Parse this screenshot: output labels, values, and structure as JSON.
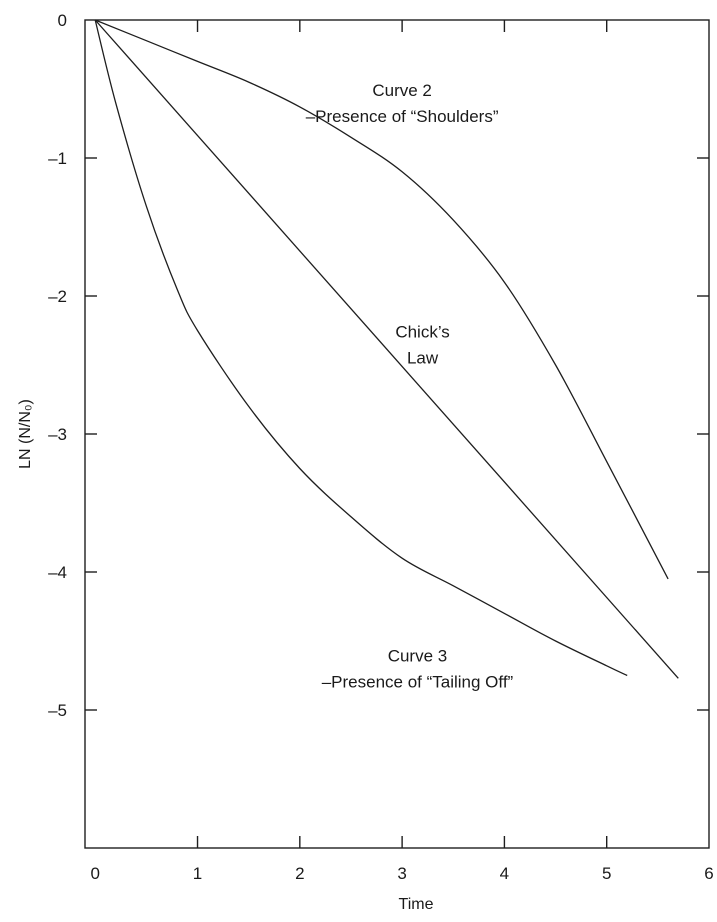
{
  "chart_data": {
    "type": "line",
    "title": "",
    "xlabel": "Time",
    "ylabel": "LN (N/N₀)",
    "xlim": [
      -0.1,
      6.0
    ],
    "ylim": [
      -6.0,
      0.0
    ],
    "grid": false,
    "x_ticks": [
      "0",
      "1",
      "2",
      "3",
      "4",
      "5",
      "6"
    ],
    "y_ticks": [
      "0",
      "-1",
      "-2",
      "-3",
      "-4",
      "-5"
    ],
    "series": [
      {
        "name": "",
        "points": [
          [
            0,
            0
          ],
          [
            5.7,
            -4.77
          ]
        ]
      },
      {
        "name": "",
        "points": [
          [
            0,
            0
          ],
          [
            0.5,
            -0.15
          ],
          [
            1.0,
            -0.3
          ],
          [
            1.5,
            -0.45
          ],
          [
            2.0,
            -0.63
          ],
          [
            2.5,
            -0.85
          ],
          [
            3.0,
            -1.1
          ],
          [
            3.5,
            -1.45
          ],
          [
            4.0,
            -1.9
          ],
          [
            4.5,
            -2.5
          ],
          [
            5.0,
            -3.2
          ],
          [
            5.6,
            -4.05
          ]
        ]
      },
      {
        "name": "",
        "points": [
          [
            0,
            0
          ],
          [
            0.2,
            -0.6
          ],
          [
            0.5,
            -1.35
          ],
          [
            0.8,
            -1.95
          ],
          [
            1.0,
            -2.25
          ],
          [
            1.5,
            -2.8
          ],
          [
            2.0,
            -3.25
          ],
          [
            2.5,
            -3.6
          ],
          [
            3.0,
            -3.9
          ],
          [
            3.5,
            -4.1
          ],
          [
            4.0,
            -4.3
          ],
          [
            4.5,
            -4.5
          ],
          [
            5.0,
            -4.68
          ],
          [
            5.2,
            -4.75
          ]
        ]
      }
    ],
    "annotations": [
      {
        "lines": [
          "Curve 2",
          "–Presence of “Shoulders”"
        ],
        "at": [
          3.0,
          -0.55
        ]
      },
      {
        "lines": [
          "Chick’s",
          "Law"
        ],
        "at": [
          3.2,
          -2.3
        ]
      },
      {
        "lines": [
          "Curve 3",
          "–Presence of “Tailing Off”"
        ],
        "at": [
          3.15,
          -4.65
        ]
      }
    ]
  }
}
